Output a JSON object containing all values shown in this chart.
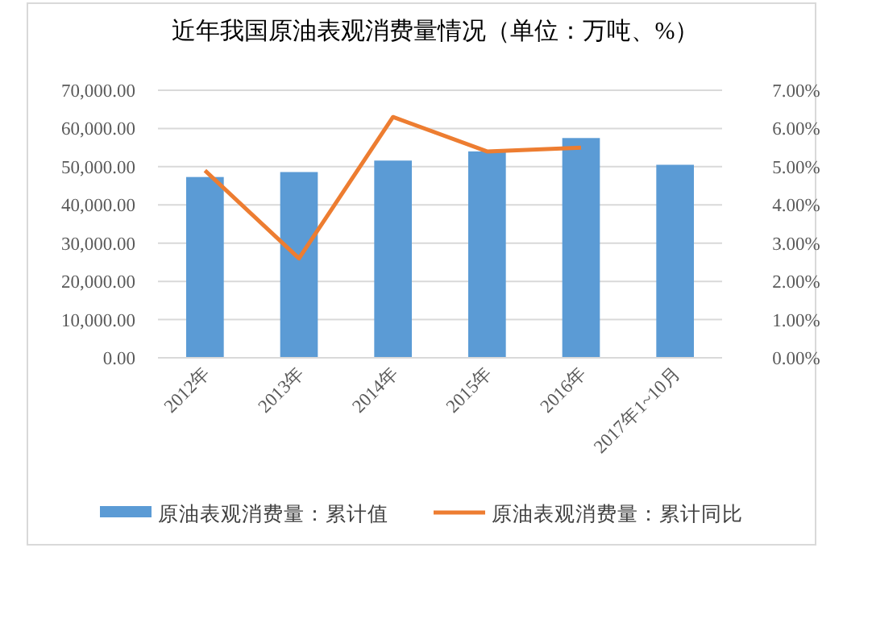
{
  "chart_data": {
    "type": "bar",
    "title": "近年我国原油表观消费量情况（单位：万吨、%）",
    "categories": [
      "2012年",
      "2013年",
      "2014年",
      "2015年",
      "2016年",
      "2017年1~10月"
    ],
    "series": [
      {
        "name": "原油表观消费量：累计值",
        "color": "#5b9bd5",
        "values": [
          47300,
          48600,
          51600,
          54000,
          57500,
          50500
        ]
      },
      {
        "name": "原油表观消费量：累计同比",
        "type": "line",
        "axis": "y2",
        "color": "#ed7d31",
        "values": [
          4.9,
          2.6,
          6.3,
          5.4,
          5.5,
          null
        ]
      }
    ],
    "ylim": [
      0,
      70000
    ],
    "yticks": [
      {
        "value": 0,
        "label": "0.00"
      },
      {
        "value": 10000,
        "label": "10,000.00"
      },
      {
        "value": 20000,
        "label": "20,000.00"
      },
      {
        "value": 30000,
        "label": "30,000.00"
      },
      {
        "value": 40000,
        "label": "40,000.00"
      },
      {
        "value": 50000,
        "label": "50,000.00"
      },
      {
        "value": 60000,
        "label": "60,000.00"
      },
      {
        "value": 70000,
        "label": "70,000.00"
      }
    ],
    "y2lim": [
      0,
      7
    ],
    "y2ticks": [
      {
        "value": 0,
        "label": "0.00%"
      },
      {
        "value": 1,
        "label": "1.00%"
      },
      {
        "value": 2,
        "label": "2.00%"
      },
      {
        "value": 3,
        "label": "3.00%"
      },
      {
        "value": 4,
        "label": "4.00%"
      },
      {
        "value": 5,
        "label": "5.00%"
      },
      {
        "value": 6,
        "label": "6.00%"
      },
      {
        "value": 7,
        "label": "7.00%"
      }
    ],
    "grid": "y",
    "legend": "bottom",
    "marker": "none"
  }
}
